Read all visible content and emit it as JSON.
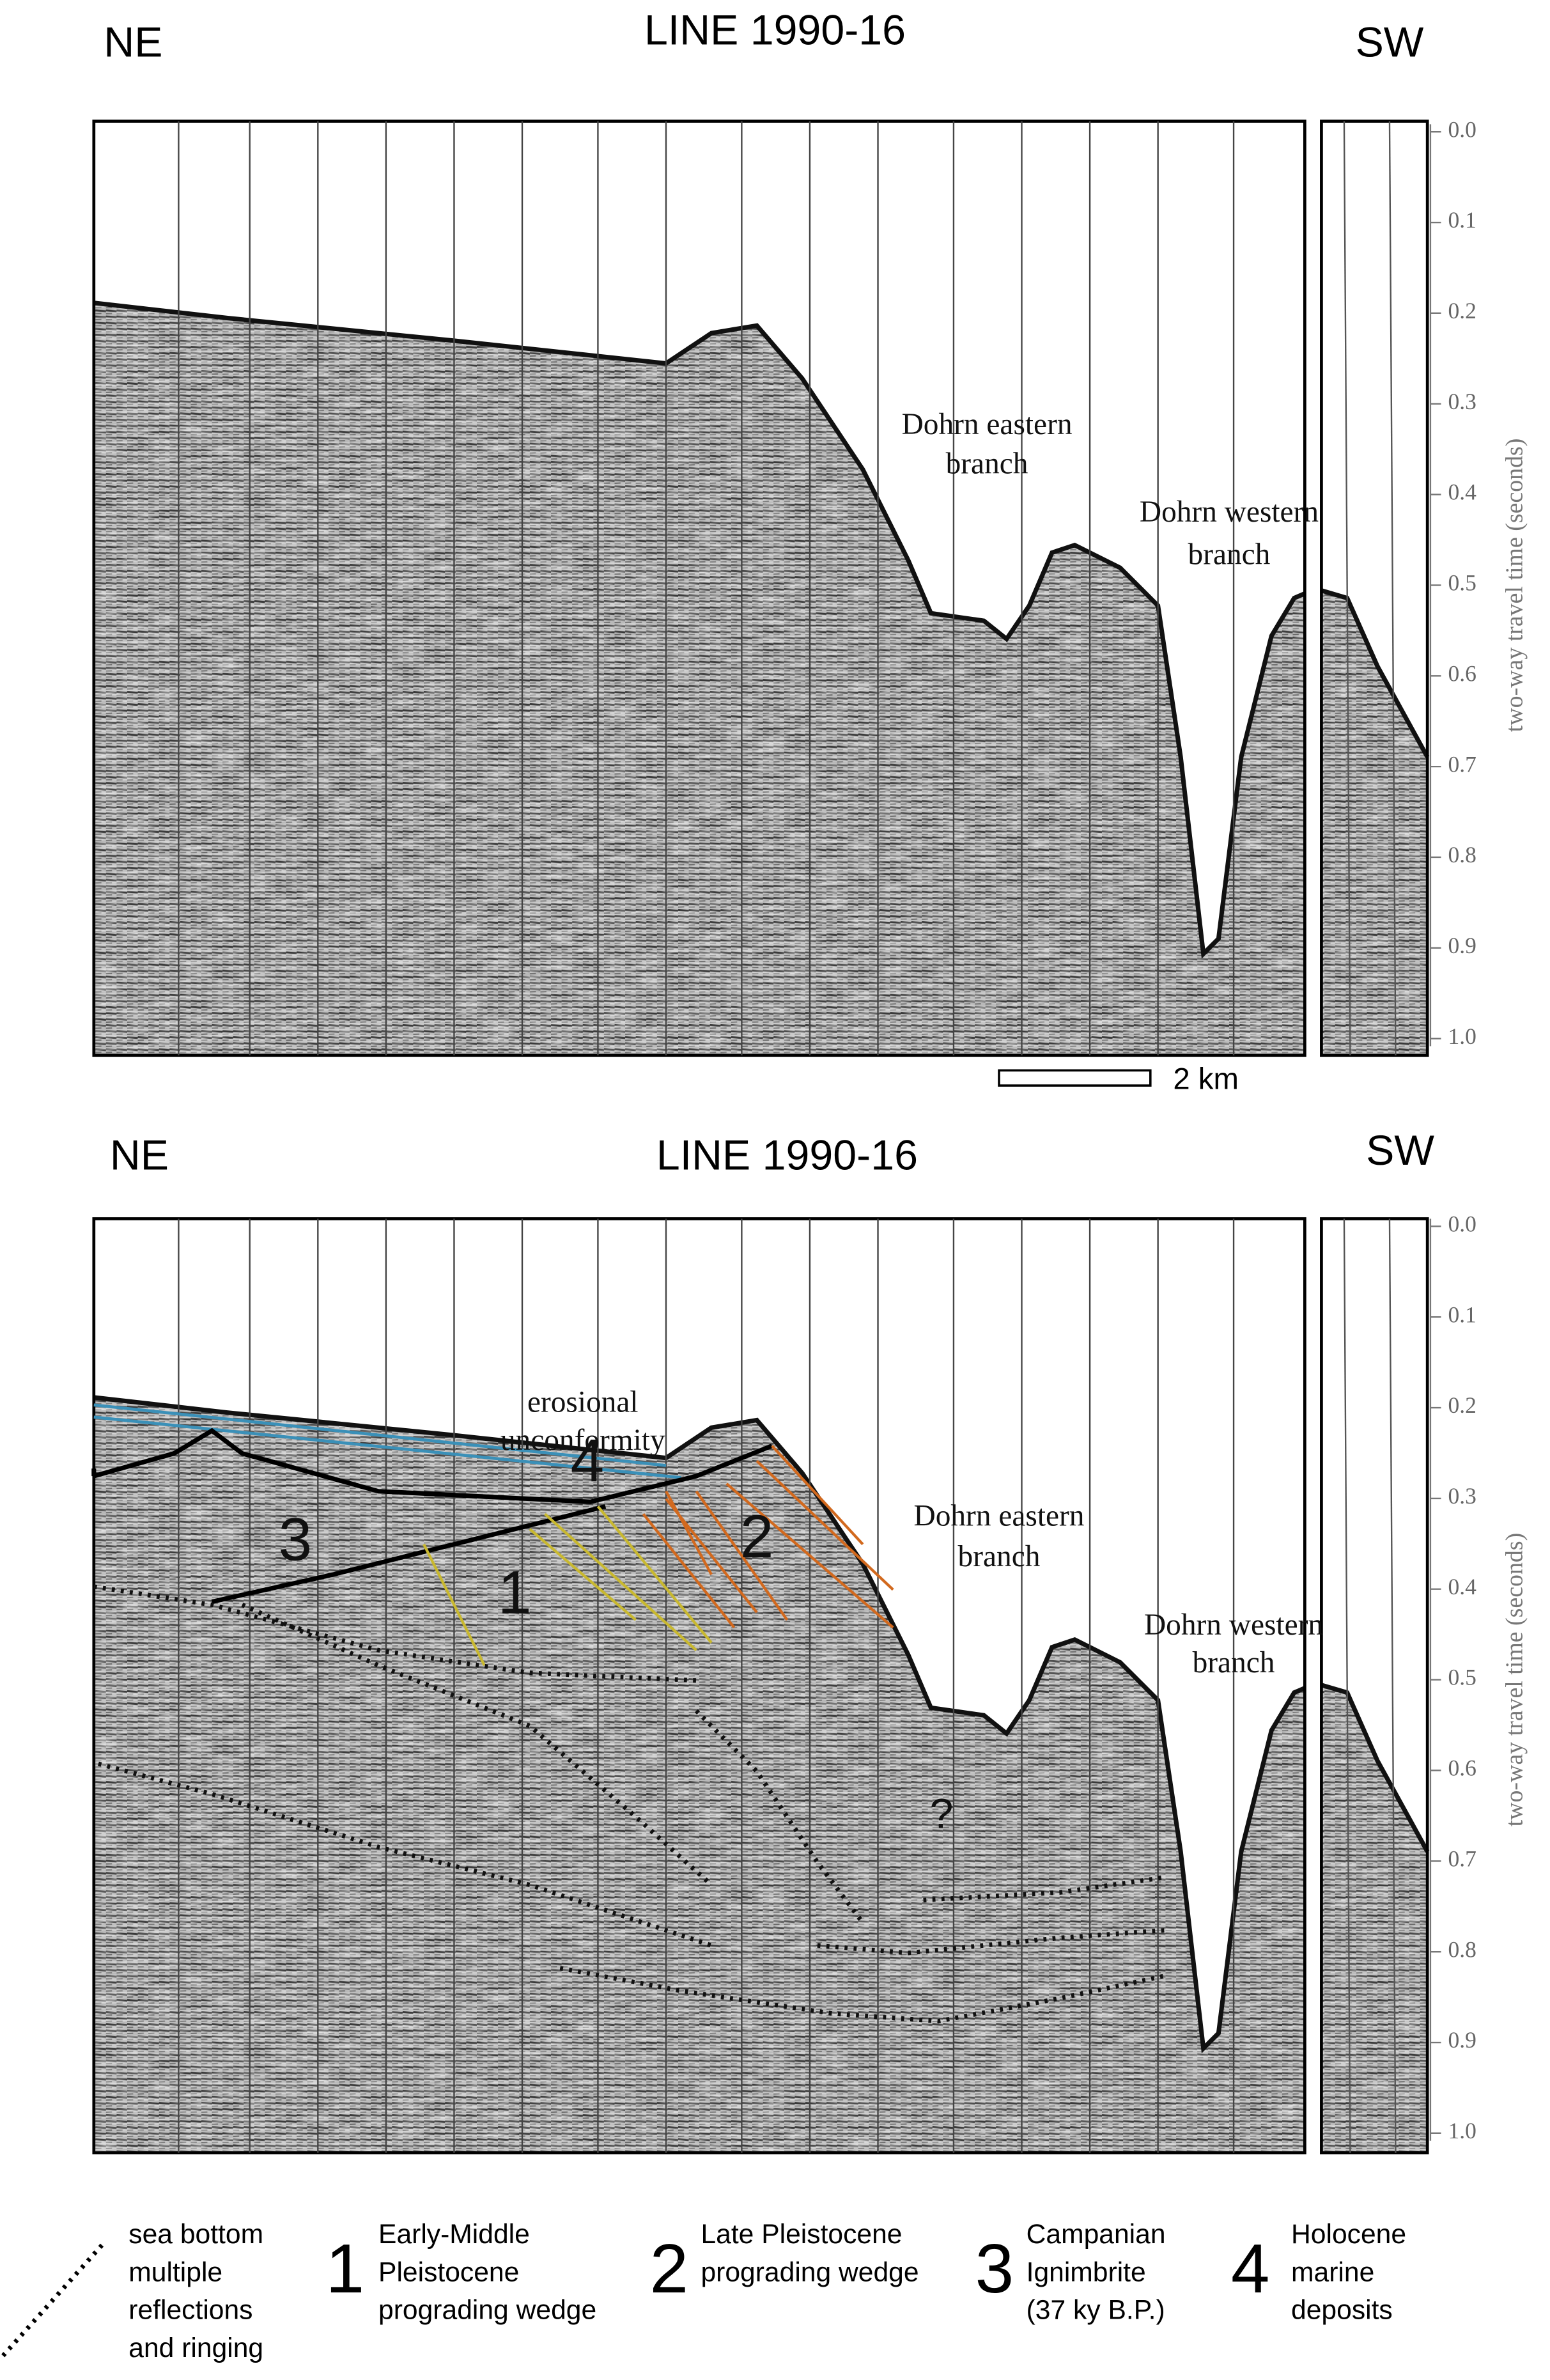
{
  "panels": [
    {
      "left_label": "NE",
      "title": "LINE 1990-16",
      "right_label": "SW",
      "y_axis_label": "two-way travel time (seconds)",
      "yticks": [
        "0.0",
        "0.1",
        "0.2",
        "0.3",
        "0.4",
        "0.5",
        "0.6",
        "0.7",
        "0.8",
        "0.9",
        "1.0"
      ],
      "annotations": [
        "Dohrn eastern",
        "branch",
        "Dohrn western",
        "branch"
      ],
      "scale_bar": "2 km"
    },
    {
      "left_label": "NE",
      "title": "LINE 1990-16",
      "right_label": "SW",
      "y_axis_label": "two-way travel time (seconds)",
      "yticks": [
        "0.0",
        "0.1",
        "0.2",
        "0.3",
        "0.4",
        "0.5",
        "0.6",
        "0.7",
        "0.8",
        "0.9",
        "1.0"
      ],
      "annotations": [
        "erosional",
        "unconformity",
        "3",
        "4",
        "1",
        "2",
        "?",
        "Dohrn eastern",
        "branch",
        "Dohrn western",
        "branch"
      ]
    }
  ],
  "legend": [
    {
      "text": [
        "sea bottom",
        "multiple",
        "reflections",
        "and ringing"
      ]
    },
    {
      "number": "1",
      "text": [
        "Early-Middle",
        "Pleistocene",
        "prograding wedge"
      ]
    },
    {
      "number": "2",
      "text": [
        "Late  Pleistocene",
        "prograding wedge"
      ]
    },
    {
      "number": "3",
      "text": [
        "Campanian",
        "Ignimbrite",
        "(37 ky B.P.)"
      ]
    },
    {
      "number": "4",
      "text": [
        "Holocene",
        "marine",
        "deposits"
      ]
    }
  ]
}
